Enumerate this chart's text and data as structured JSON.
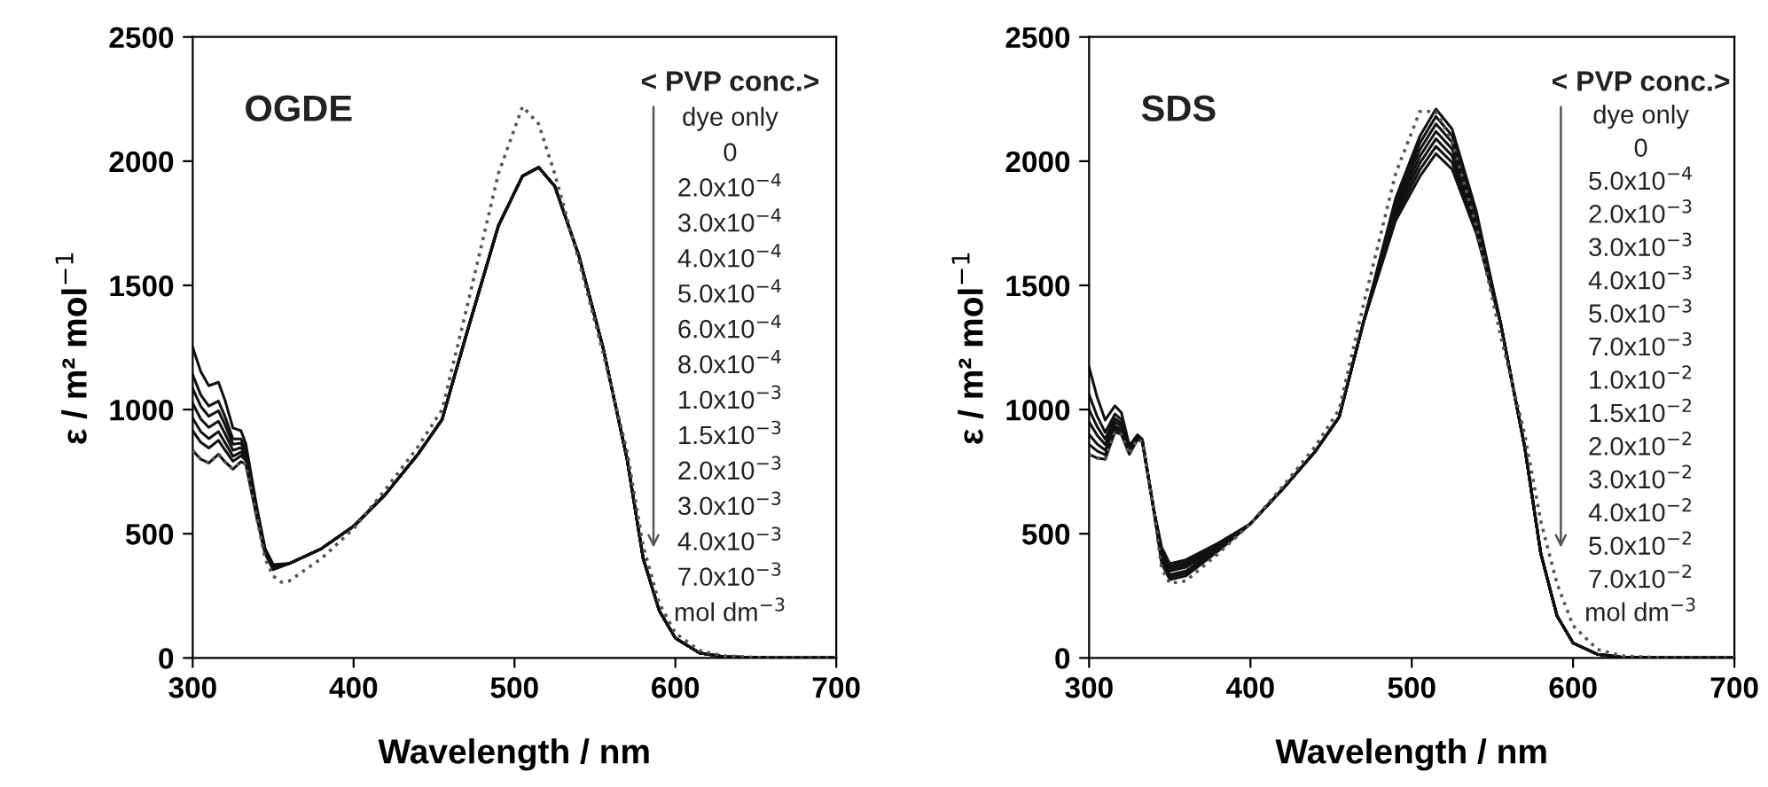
{
  "chart_data": [
    {
      "type": "line",
      "xlabel": "Wavelength / nm",
      "ylabel": "ε / m² mol$^{−1}$",
      "xlim": [
        300,
        700
      ],
      "ylim": [
        0,
        2500
      ],
      "xticks": [
        300,
        400,
        500,
        600,
        700
      ],
      "yticks": [
        0,
        500,
        1000,
        1500,
        2000,
        2500
      ],
      "grid": false,
      "legend": false,
      "annotations": [
        "OGDE",
        "< PVP conc.>",
        "dye only",
        "0",
        "2.0x10$^{−4}$",
        "3.0x10$^{−4}$",
        "4.0x10$^{−4}$",
        "5.0x10$^{−4}$",
        "6.0x10$^{−4}$",
        "8.0x10$^{−4}$",
        "1.0x10$^{−3}$",
        "1.5x10$^{−3}$",
        "2.0x10$^{−3}$",
        "3.0x10$^{−3}$",
        "4.0x10$^{−3}$",
        "7.0x10$^{−3}$",
        "mol dm$^{−3}$"
      ],
      "series": [
        {
          "color": "#555555",
          "line_style": "dotted",
          "x": [
            300,
            305,
            310,
            316,
            320,
            325,
            330,
            333,
            340,
            345,
            350,
            355,
            360,
            380,
            400,
            420,
            440,
            455,
            470,
            490,
            505,
            515,
            525,
            540,
            555,
            570,
            580,
            590,
            600,
            615,
            630,
            660,
            700
          ],
          "values": [
            835,
            800,
            785,
            820,
            790,
            760,
            790,
            780,
            560,
            400,
            330,
            305,
            310,
            400,
            520,
            680,
            850,
            1000,
            1400,
            1950,
            2220,
            2150,
            1950,
            1600,
            1230,
            830,
            450,
            220,
            100,
            30,
            8,
            0,
            0
          ]
        },
        {
          "color": "#111111",
          "line_style": "solid",
          "x": [
            300,
            305,
            310,
            316,
            320,
            325,
            330,
            333,
            340,
            345,
            350,
            360,
            380,
            400,
            420,
            440,
            455,
            470,
            490,
            505,
            515,
            525,
            540,
            555,
            570,
            580,
            590,
            600,
            615,
            630,
            660,
            700
          ],
          "values": [
            1250,
            1153,
            1096,
            1110,
            1039,
            926,
            915,
            863,
            602,
            441,
            376,
            380,
            440,
            530,
            660,
            820,
            960,
            1300,
            1740,
            1940,
            1975,
            1900,
            1620,
            1250,
            800,
            400,
            190,
            80,
            20,
            5,
            0,
            0
          ]
        },
        {
          "color": "#111111",
          "line_style": "solid",
          "x": [
            300,
            305,
            310,
            316,
            320,
            325,
            330,
            333,
            340,
            345,
            350,
            360,
            380,
            400,
            420,
            440,
            455,
            470,
            490,
            505,
            515,
            525,
            540,
            555,
            570,
            580,
            590,
            600,
            615,
            630,
            660,
            700
          ],
          "values": [
            1140,
            1059,
            1014,
            1034,
            973,
            882,
            882,
            841,
            591,
            435,
            370,
            380,
            440,
            530,
            660,
            820,
            960,
            1300,
            1740,
            1940,
            1975,
            1900,
            1620,
            1250,
            800,
            400,
            190,
            80,
            20,
            5,
            0,
            0
          ]
        },
        {
          "color": "#111111",
          "line_style": "solid",
          "x": [
            300,
            305,
            310,
            316,
            320,
            325,
            330,
            333,
            340,
            345,
            350,
            360,
            380,
            400,
            420,
            440,
            455,
            470,
            490,
            505,
            515,
            525,
            540,
            555,
            570,
            580,
            590,
            600,
            615,
            630,
            660,
            700
          ],
          "values": [
            1085,
            1013,
            973,
            995,
            940,
            860,
            865,
            830,
            585,
            433,
            368,
            380,
            440,
            530,
            660,
            820,
            960,
            1300,
            1740,
            1940,
            1975,
            1900,
            1620,
            1250,
            800,
            400,
            190,
            80,
            20,
            5,
            0,
            0
          ]
        },
        {
          "color": "#111111",
          "line_style": "solid",
          "x": [
            300,
            305,
            310,
            316,
            320,
            325,
            330,
            333,
            340,
            345,
            350,
            360,
            380,
            400,
            420,
            440,
            455,
            470,
            490,
            505,
            515,
            525,
            540,
            555,
            570,
            580,
            590,
            600,
            615,
            630,
            660,
            700
          ],
          "values": [
            1025,
            962,
            928,
            953,
            904,
            836,
            847,
            818,
            579,
            430,
            365,
            380,
            440,
            530,
            660,
            820,
            960,
            1300,
            1740,
            1940,
            1975,
            1900,
            1620,
            1250,
            800,
            400,
            190,
            80,
            20,
            5,
            0,
            0
          ]
        },
        {
          "color": "#111111",
          "line_style": "solid",
          "x": [
            300,
            305,
            310,
            316,
            320,
            325,
            330,
            333,
            340,
            345,
            350,
            360,
            380,
            400,
            420,
            440,
            455,
            470,
            490,
            505,
            515,
            525,
            540,
            555,
            570,
            580,
            590,
            600,
            615,
            630,
            660,
            700
          ],
          "values": [
            965,
            911,
            883,
            911,
            868,
            812,
            829,
            806,
            573,
            427,
            362,
            380,
            440,
            530,
            660,
            820,
            960,
            1300,
            1740,
            1940,
            1975,
            1900,
            1620,
            1250,
            800,
            400,
            190,
            80,
            20,
            5,
            0,
            0
          ]
        },
        {
          "color": "#111111",
          "line_style": "solid",
          "x": [
            300,
            305,
            310,
            316,
            320,
            325,
            330,
            333,
            340,
            345,
            350,
            360,
            380,
            400,
            420,
            440,
            455,
            470,
            490,
            505,
            515,
            525,
            540,
            555,
            570,
            580,
            590,
            600,
            615,
            630,
            660,
            700
          ],
          "values": [
            915,
            868,
            845,
            876,
            838,
            792,
            814,
            796,
            568,
            424,
            359,
            380,
            440,
            530,
            660,
            820,
            960,
            1300,
            1740,
            1940,
            1975,
            1900,
            1620,
            1250,
            800,
            400,
            190,
            80,
            20,
            5,
            0,
            0
          ]
        },
        {
          "color": "#111111",
          "line_style": "solid",
          "x": [
            300,
            305,
            310,
            316,
            320,
            325,
            330,
            333,
            340,
            345,
            350,
            360,
            380,
            400,
            420,
            440,
            455,
            470,
            490,
            505,
            515,
            525,
            540,
            555,
            570,
            580,
            590,
            600,
            615,
            630,
            660,
            700
          ],
          "values": [
            835,
            800,
            785,
            820,
            790,
            760,
            790,
            780,
            560,
            420,
            355,
            380,
            440,
            530,
            660,
            820,
            960,
            1300,
            1740,
            1940,
            1975,
            1900,
            1620,
            1250,
            800,
            400,
            190,
            80,
            20,
            5,
            0,
            0
          ]
        }
      ]
    },
    {
      "type": "line",
      "xlabel": "Wavelength / nm",
      "ylabel": "ε / m² mol$^{−1}$",
      "xlim": [
        300,
        700
      ],
      "ylim": [
        0,
        2500
      ],
      "xticks": [
        300,
        400,
        500,
        600,
        700
      ],
      "yticks": [
        0,
        500,
        1000,
        1500,
        2000,
        2500
      ],
      "grid": false,
      "legend": false,
      "annotations": [
        "SDS",
        "< PVP conc.>",
        "dye only",
        "0",
        "5.0x10$^{−4}$",
        "2.0x10$^{−3}$",
        "3.0x10$^{−3}$",
        "4.0x10$^{−3}$",
        "5.0x10$^{−3}$",
        "7.0x10$^{−3}$",
        "1.0x10$^{−2}$",
        "1.5x10$^{−2}$",
        "2.0x10$^{−2}$",
        "3.0x10$^{−2}$",
        "4.0x10$^{−2}$",
        "5.0x10$^{−2}$",
        "7.0x10$^{−2}$",
        "mol dm$^{−3}$"
      ],
      "series": [
        {
          "color": "#555555",
          "line_style": "dotted",
          "x": [
            300,
            305,
            310,
            316,
            320,
            325,
            330,
            333,
            340,
            345,
            350,
            360,
            380,
            400,
            420,
            440,
            455,
            470,
            490,
            505,
            515,
            525,
            540,
            555,
            570,
            580,
            590,
            600,
            615,
            630,
            660,
            700
          ],
          "values": [
            820,
            805,
            800,
            910,
            900,
            820,
            880,
            870,
            600,
            360,
            300,
            310,
            420,
            540,
            690,
            850,
            1000,
            1420,
            1950,
            2200,
            2200,
            2080,
            1740,
            1300,
            900,
            550,
            300,
            130,
            35,
            8,
            0,
            0
          ]
        },
        {
          "color": "#111111",
          "line_style": "solid",
          "x": [
            300,
            305,
            310,
            316,
            320,
            325,
            330,
            333,
            340,
            345,
            350,
            360,
            380,
            400,
            420,
            440,
            455,
            470,
            490,
            505,
            515,
            525,
            540,
            555,
            570,
            580,
            590,
            600,
            615,
            630,
            660,
            700
          ],
          "values": [
            1170,
            1050,
            958,
            1015,
            988,
            855,
            898,
            880,
            600,
            445,
            380,
            395,
            462,
            540,
            680,
            830,
            970,
            1350,
            1760,
            1938,
            2030,
            1968,
            1710,
            1350,
            850,
            420,
            170,
            60,
            15,
            3,
            0,
            0
          ]
        },
        {
          "color": "#111111",
          "line_style": "solid",
          "x": [
            300,
            305,
            310,
            316,
            320,
            325,
            330,
            333,
            340,
            345,
            350,
            360,
            380,
            400,
            420,
            440,
            455,
            470,
            490,
            505,
            515,
            525,
            540,
            555,
            570,
            580,
            590,
            600,
            615,
            630,
            660,
            700
          ],
          "values": [
            1060,
            973,
            908,
            982,
            960,
            844,
            892,
            877,
            600,
            435,
            370,
            385,
            457,
            540,
            680,
            830,
            970,
            1350,
            1775,
            1965,
            2060,
            1995,
            1725,
            1350,
            850,
            420,
            170,
            60,
            15,
            3,
            0,
            0
          ]
        },
        {
          "color": "#111111",
          "line_style": "solid",
          "x": [
            300,
            305,
            310,
            316,
            320,
            325,
            330,
            333,
            340,
            345,
            350,
            360,
            380,
            400,
            420,
            440,
            455,
            470,
            490,
            505,
            515,
            525,
            540,
            555,
            570,
            580,
            590,
            600,
            615,
            630,
            660,
            700
          ],
          "values": [
            1000,
            931,
            881,
            964,
            945,
            838,
            889,
            875,
            600,
            425,
            360,
            375,
            452,
            540,
            680,
            830,
            970,
            1350,
            1790,
            1992,
            2090,
            2022,
            1740,
            1350,
            850,
            420,
            170,
            60,
            15,
            3,
            0,
            0
          ]
        },
        {
          "color": "#111111",
          "line_style": "solid",
          "x": [
            300,
            305,
            310,
            316,
            320,
            325,
            330,
            333,
            340,
            345,
            350,
            360,
            380,
            400,
            420,
            440,
            455,
            470,
            490,
            505,
            515,
            525,
            540,
            555,
            570,
            580,
            590,
            600,
            615,
            630,
            660,
            700
          ],
          "values": [
            950,
            896,
            859,
            949,
            933,
            833,
            887,
            874,
            600,
            415,
            350,
            365,
            447,
            540,
            680,
            830,
            970,
            1350,
            1805,
            2019,
            2120,
            2049,
            1755,
            1350,
            850,
            420,
            170,
            60,
            15,
            3,
            0,
            0
          ]
        },
        {
          "color": "#111111",
          "line_style": "solid",
          "x": [
            300,
            305,
            310,
            316,
            320,
            325,
            330,
            333,
            340,
            345,
            350,
            360,
            380,
            400,
            420,
            440,
            455,
            470,
            490,
            505,
            515,
            525,
            540,
            555,
            570,
            580,
            590,
            600,
            615,
            630,
            660,
            700
          ],
          "values": [
            900,
            861,
            836,
            934,
            920,
            828,
            884,
            872,
            600,
            400,
            335,
            350,
            440,
            540,
            680,
            830,
            970,
            1350,
            1820,
            2046,
            2150,
            2076,
            1770,
            1350,
            850,
            420,
            170,
            60,
            15,
            3,
            0,
            0
          ]
        },
        {
          "color": "#111111",
          "line_style": "solid",
          "x": [
            300,
            305,
            310,
            316,
            320,
            325,
            330,
            333,
            340,
            345,
            350,
            360,
            380,
            400,
            420,
            440,
            455,
            470,
            490,
            505,
            515,
            525,
            540,
            555,
            570,
            580,
            590,
            600,
            615,
            630,
            660,
            700
          ],
          "values": [
            860,
            833,
            818,
            922,
            910,
            824,
            882,
            871,
            600,
            390,
            325,
            340,
            435,
            540,
            680,
            830,
            970,
            1350,
            1835,
            2073,
            2180,
            2103,
            1785,
            1350,
            850,
            420,
            170,
            60,
            15,
            3,
            0,
            0
          ]
        },
        {
          "color": "#111111",
          "line_style": "solid",
          "x": [
            300,
            305,
            310,
            316,
            320,
            325,
            330,
            333,
            340,
            345,
            350,
            360,
            380,
            400,
            420,
            440,
            455,
            470,
            490,
            505,
            515,
            525,
            540,
            555,
            570,
            580,
            590,
            600,
            615,
            630,
            660,
            700
          ],
          "values": [
            820,
            805,
            800,
            910,
            900,
            820,
            880,
            870,
            600,
            380,
            315,
            330,
            430,
            540,
            680,
            830,
            970,
            1350,
            1850,
            2100,
            2210,
            2130,
            1800,
            1350,
            850,
            420,
            170,
            60,
            15,
            3,
            0,
            0
          ]
        }
      ]
    }
  ]
}
